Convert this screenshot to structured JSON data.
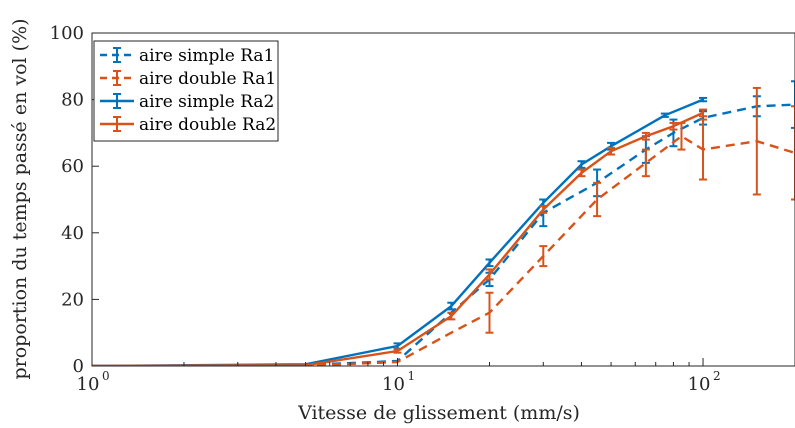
{
  "chart_data": {
    "type": "line",
    "title": "",
    "xlabel": "Vitesse de glissement (mm/s)",
    "ylabel": "proportion du temps passé en vol (%)",
    "xscale": "log",
    "xlim": [
      1,
      200
    ],
    "ylim": [
      0,
      100
    ],
    "xticks": [
      {
        "value": 1,
        "base": "10",
        "exp": "0"
      },
      {
        "value": 10,
        "base": "10",
        "exp": "1"
      },
      {
        "value": 100,
        "base": "10",
        "exp": "2"
      }
    ],
    "yticks": [
      "0",
      "20",
      "40",
      "60",
      "80",
      "100"
    ],
    "grid": false,
    "legend_position": "top-left",
    "series": [
      {
        "name": "aire simple Ra1",
        "color": "#0072BD",
        "dash": "dashed",
        "x": [
          1,
          5,
          10,
          15,
          20,
          30,
          45,
          65,
          80,
          100,
          150,
          200
        ],
        "y": [
          0,
          0.3,
          1.5,
          16,
          26,
          46,
          55,
          65,
          70,
          74.5,
          78,
          78.5
        ],
        "err": [
          0,
          0,
          0,
          0,
          2,
          4,
          4,
          4,
          4,
          2,
          3,
          7
        ]
      },
      {
        "name": "aire double Ra1",
        "color": "#D95319",
        "dash": "dashed",
        "x": [
          1,
          5,
          10,
          15,
          20,
          30,
          45,
          65,
          85,
          100,
          150,
          200
        ],
        "y": [
          0,
          0.1,
          1.2,
          10,
          16,
          33,
          50,
          61,
          69,
          65,
          67.5,
          64
        ],
        "err": [
          0,
          0,
          0,
          0,
          6,
          3,
          5,
          4,
          4,
          9,
          16,
          14
        ]
      },
      {
        "name": "aire simple Ra2",
        "color": "#0072BD",
        "dash": "solid",
        "x": [
          1,
          5,
          10,
          15,
          20,
          30,
          40,
          50,
          75,
          100
        ],
        "y": [
          0,
          0.5,
          6,
          18,
          31,
          49,
          60.5,
          66,
          75.3,
          80
        ],
        "err": [
          0,
          0,
          0.8,
          1,
          1,
          1,
          1,
          1,
          0.5,
          0.5
        ]
      },
      {
        "name": "aire double Ra2",
        "color": "#D95319",
        "dash": "solid",
        "x": [
          1,
          5,
          10,
          15,
          20,
          30,
          40,
          50,
          65,
          80,
          100
        ],
        "y": [
          0,
          0.2,
          4.5,
          15,
          27.5,
          47,
          58,
          64.5,
          69,
          72,
          76
        ],
        "err": [
          0,
          0,
          0.5,
          1,
          1.5,
          1,
          1,
          1,
          1,
          1,
          1
        ]
      }
    ]
  }
}
